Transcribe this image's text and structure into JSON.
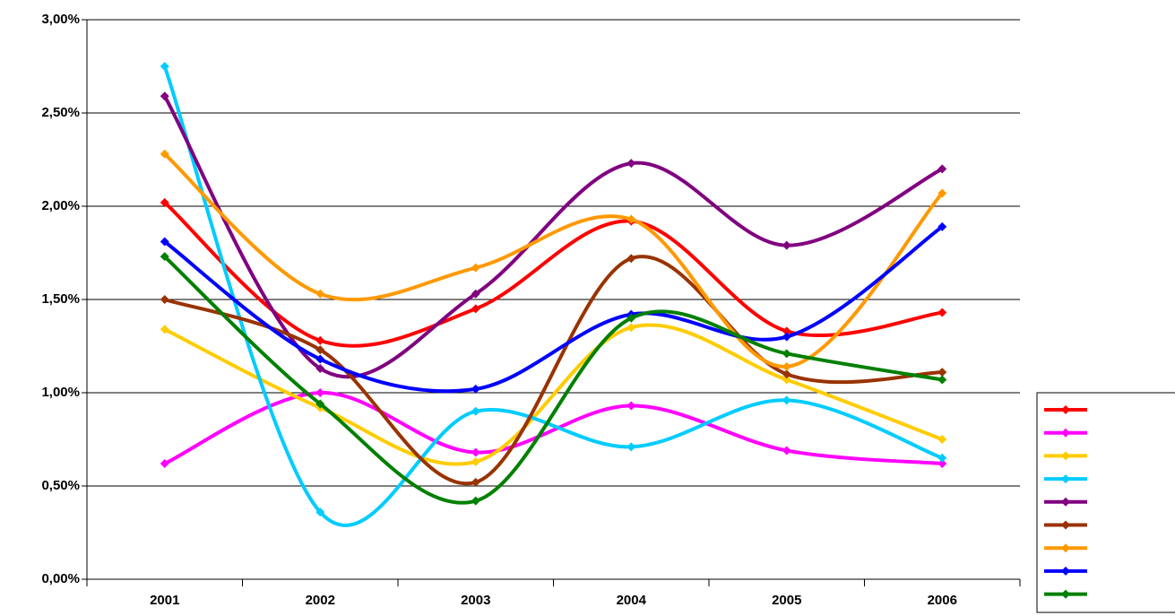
{
  "chart_data": {
    "type": "line",
    "categories": [
      "2001",
      "2002",
      "2003",
      "2004",
      "2005",
      "2006"
    ],
    "ylim": [
      0,
      3
    ],
    "yticks": [
      {
        "value": 0,
        "label": "0,00%"
      },
      {
        "value": 0.5,
        "label": "0,50%"
      },
      {
        "value": 1,
        "label": "1,00%"
      },
      {
        "value": 1.5,
        "label": "1,50%"
      },
      {
        "value": 2,
        "label": "2,00%"
      },
      {
        "value": 2.5,
        "label": "2,50%"
      },
      {
        "value": 3,
        "label": "3,00%"
      }
    ],
    "grid": true,
    "smooth": true,
    "legend": "right",
    "series": [
      {
        "color": "#ff0000",
        "values": [
          2.02,
          1.28,
          1.45,
          1.92,
          1.33,
          1.43
        ]
      },
      {
        "color": "#ff00ff",
        "values": [
          0.62,
          1.0,
          0.68,
          0.93,
          0.69,
          0.62
        ]
      },
      {
        "color": "#ffcc00",
        "values": [
          1.34,
          0.92,
          0.63,
          1.35,
          1.07,
          0.75
        ]
      },
      {
        "color": "#00ccff",
        "values": [
          2.75,
          0.36,
          0.9,
          0.71,
          0.96,
          0.65
        ]
      },
      {
        "color": "#800080",
        "values": [
          2.59,
          1.13,
          1.53,
          2.23,
          1.79,
          2.2
        ]
      },
      {
        "color": "#993300",
        "values": [
          1.5,
          1.23,
          0.52,
          1.72,
          1.1,
          1.11
        ]
      },
      {
        "color": "#ff9900",
        "values": [
          2.28,
          1.53,
          1.67,
          1.93,
          1.14,
          2.07
        ]
      },
      {
        "color": "#0000ff",
        "values": [
          1.81,
          1.18,
          1.02,
          1.42,
          1.3,
          1.89
        ]
      },
      {
        "color": "#008000",
        "values": [
          1.73,
          0.94,
          0.42,
          1.4,
          1.21,
          1.07
        ]
      }
    ]
  }
}
